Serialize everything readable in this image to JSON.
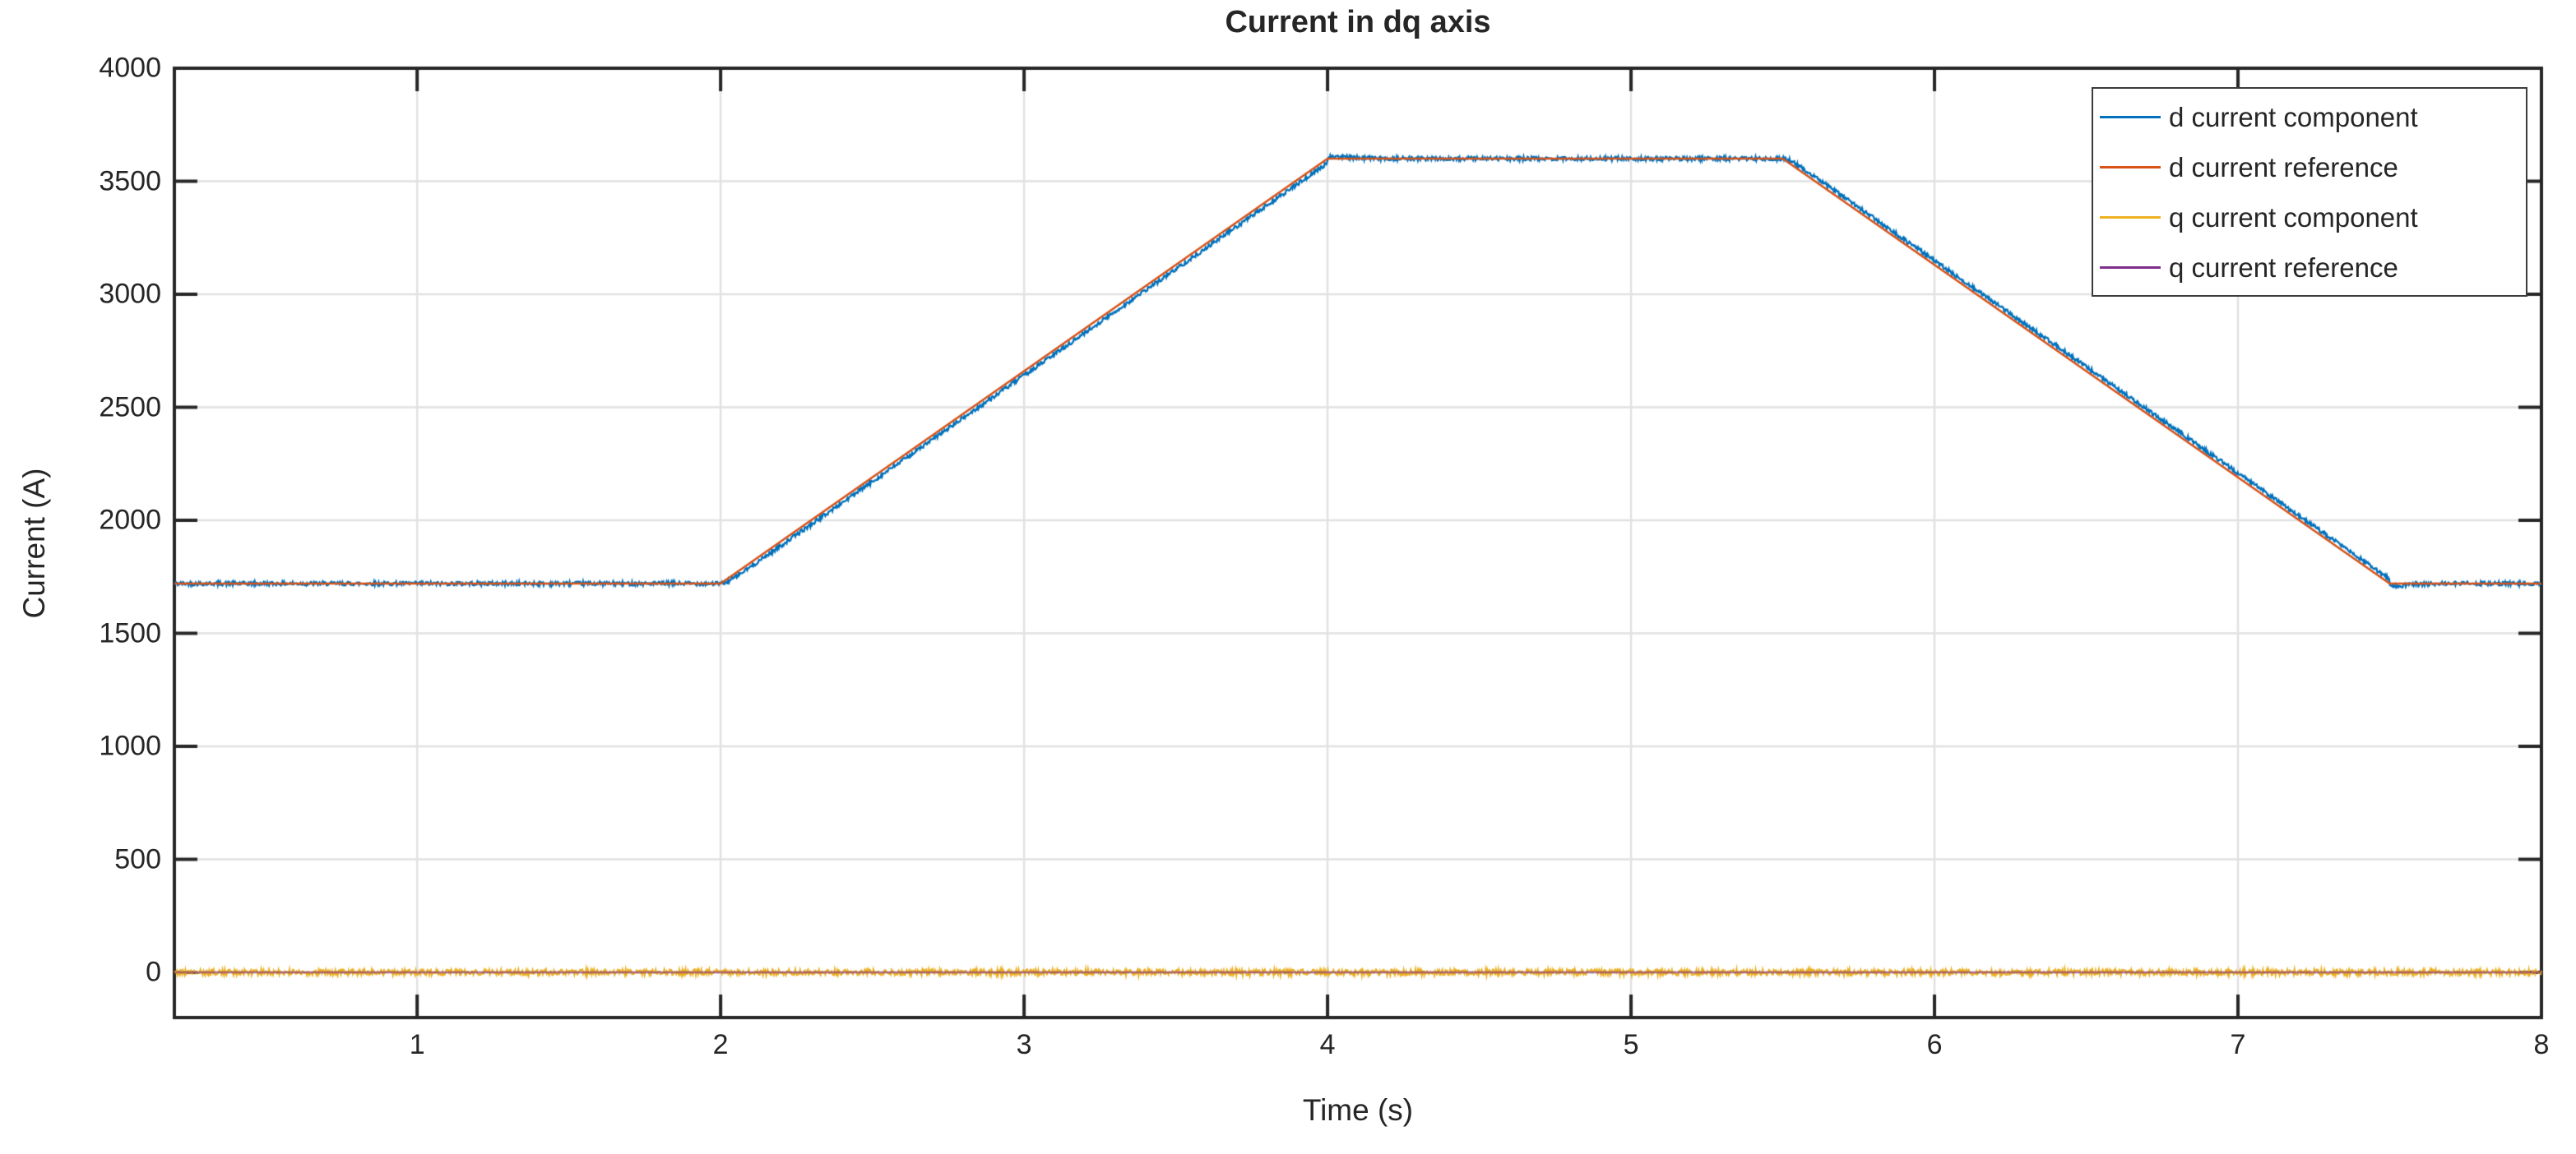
{
  "chart_data": {
    "type": "line",
    "title": "Current in dq axis",
    "xlabel": "Time (s)",
    "ylabel": "Current (A)",
    "xlim": [
      0.2,
      8
    ],
    "ylim": [
      -200,
      4000
    ],
    "xticks": [
      1,
      2,
      3,
      4,
      5,
      6,
      7,
      8
    ],
    "yticks": [
      0,
      500,
      1000,
      1500,
      2000,
      2500,
      3000,
      3500,
      4000
    ],
    "grid": true,
    "legend_position": "top-right",
    "series": [
      {
        "name": "d current component",
        "color": "#0072BD",
        "style": "noisy",
        "noise_amplitude": 9,
        "smooth_tau": 0.02,
        "overshoots": [
          {
            "at": 4.0,
            "amplitude": 26,
            "tau": 0.05
          },
          {
            "at": 7.5,
            "amplitude": -26,
            "tau": 0.05
          }
        ],
        "points": [
          [
            0.2,
            1720
          ],
          [
            2,
            1720
          ],
          [
            4,
            3600
          ],
          [
            5.5,
            3600
          ],
          [
            7.5,
            1720
          ],
          [
            8,
            1720
          ]
        ]
      },
      {
        "name": "d current reference",
        "color": "#D95319",
        "style": "line",
        "noise_amplitude": 0,
        "points": [
          [
            0.2,
            1720
          ],
          [
            2,
            1720
          ],
          [
            4,
            3600
          ],
          [
            5.5,
            3600
          ],
          [
            7.5,
            1720
          ],
          [
            8,
            1720
          ]
        ]
      },
      {
        "name": "q current component",
        "color": "#EDB120",
        "style": "noisy",
        "noise_amplitude": 13,
        "points": [
          [
            0.2,
            0
          ],
          [
            8,
            0
          ]
        ]
      },
      {
        "name": "q current reference",
        "color": "#7E2F8E",
        "style": "line",
        "noise_amplitude": 0,
        "points": [
          [
            0.2,
            0
          ],
          [
            8,
            0
          ]
        ]
      }
    ]
  }
}
